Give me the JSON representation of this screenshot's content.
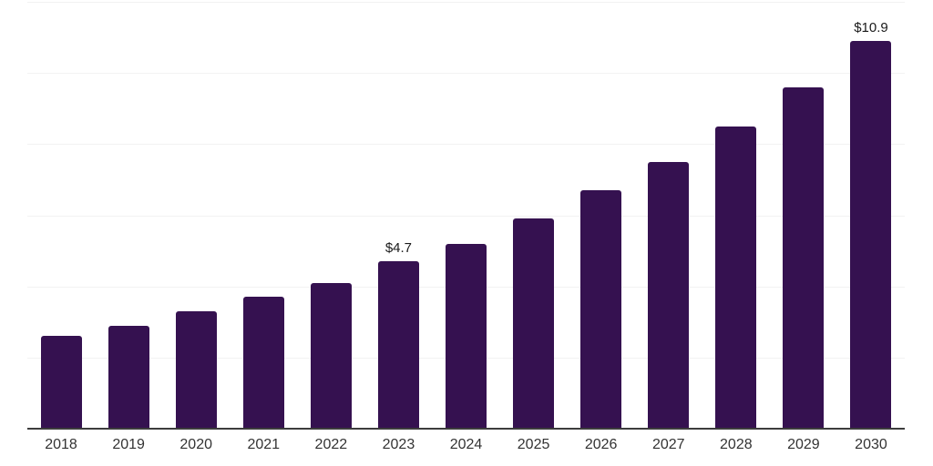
{
  "chart_data": {
    "type": "bar",
    "title": "",
    "xlabel": "",
    "ylabel": "",
    "categories": [
      "2018",
      "2019",
      "2020",
      "2021",
      "2022",
      "2023",
      "2024",
      "2025",
      "2026",
      "2027",
      "2028",
      "2029",
      "2030"
    ],
    "values": [
      2.6,
      2.9,
      3.3,
      3.7,
      4.1,
      4.7,
      5.2,
      5.9,
      6.7,
      7.5,
      8.5,
      9.6,
      10.9
    ],
    "data_labels": [
      {
        "category": "2023",
        "text": "$4.7"
      },
      {
        "category": "2030",
        "text": "$10.9"
      }
    ],
    "ylim": [
      0,
      12
    ],
    "grid_step": 2,
    "grid": "horizontal-only",
    "y_tick_labels_visible": false,
    "legend": "none"
  },
  "style": {
    "bar_color": "#351150",
    "gridline_color": "#f2f2f2",
    "axis_line_color": "#3d3d3d",
    "tick_label_color": "#333333",
    "data_label_color": "#1a1a1a",
    "background_color": "#ffffff"
  }
}
